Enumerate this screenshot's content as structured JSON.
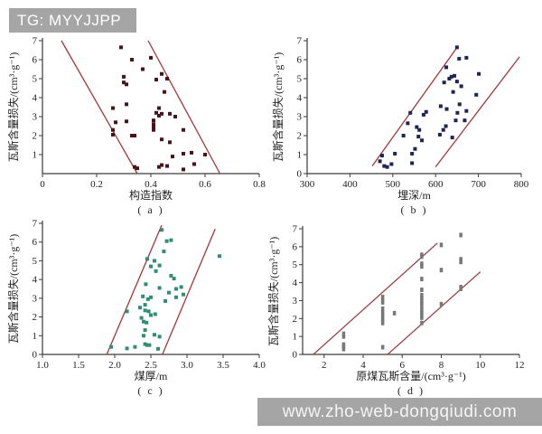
{
  "overlays": {
    "tag_badge": "TG: MYYJJPP",
    "url_watermark": "www.zho-web-dongqiudi.com",
    "overlay_bg": "#a5a5a5",
    "overlay_text_color": "#ffffff"
  },
  "chart_data": [
    {
      "id": "a",
      "type": "scatter",
      "caption": "( a )",
      "xlabel": "构造指数",
      "ylabel": "瓦斯含量损失/(cm³·g⁻¹)",
      "xlim": [
        0,
        0.8
      ],
      "ylim": [
        0,
        7
      ],
      "xtick_values": [
        0,
        0.2,
        0.4,
        0.6,
        0.8
      ],
      "xtick_labels": [
        "0",
        "0.2",
        "0.4",
        "0.6",
        "0.8"
      ],
      "ytick_values": [
        1,
        2,
        3,
        4,
        5,
        6,
        7
      ],
      "ytick_labels": [
        "1",
        "2",
        "3",
        "4",
        "5",
        "6",
        "7"
      ],
      "grid": false,
      "legend": null,
      "marker_color": "#4a151a",
      "line_color": "#a23638",
      "axis_color": "#3a3a3a",
      "envelope_lines": [
        [
          0.07,
          7,
          0.35,
          0
        ],
        [
          0.39,
          7,
          0.655,
          0
        ]
      ],
      "points": [
        [
          0.29,
          6.65
        ],
        [
          0.33,
          6.0
        ],
        [
          0.4,
          6.1
        ],
        [
          0.37,
          5.5
        ],
        [
          0.3,
          5.1
        ],
        [
          0.44,
          5.25
        ],
        [
          0.46,
          5.0
        ],
        [
          0.42,
          4.95
        ],
        [
          0.3,
          4.8
        ],
        [
          0.31,
          4.7
        ],
        [
          0.45,
          4.3
        ],
        [
          0.31,
          3.65
        ],
        [
          0.26,
          3.45
        ],
        [
          0.43,
          3.45
        ],
        [
          0.42,
          3.2
        ],
        [
          0.44,
          3.15
        ],
        [
          0.47,
          3.15
        ],
        [
          0.43,
          3.05
        ],
        [
          0.49,
          3.0
        ],
        [
          0.27,
          2.7
        ],
        [
          0.31,
          2.75
        ],
        [
          0.41,
          2.8
        ],
        [
          0.41,
          2.6
        ],
        [
          0.41,
          2.45
        ],
        [
          0.41,
          2.3
        ],
        [
          0.26,
          2.3
        ],
        [
          0.26,
          2.05
        ],
        [
          0.52,
          2.3
        ],
        [
          0.33,
          2.0
        ],
        [
          0.34,
          2.0
        ],
        [
          0.44,
          1.8
        ],
        [
          0.47,
          1.65
        ],
        [
          0.55,
          1.1
        ],
        [
          0.52,
          1.05
        ],
        [
          0.48,
          0.9
        ],
        [
          0.6,
          1.0
        ],
        [
          0.34,
          0.35
        ],
        [
          0.35,
          0.28
        ],
        [
          0.43,
          0.35
        ],
        [
          0.44,
          0.45
        ],
        [
          0.46,
          0.4
        ],
        [
          0.52,
          0.22
        ],
        [
          0.56,
          0.5
        ]
      ]
    },
    {
      "id": "b",
      "type": "scatter",
      "caption": "( b )",
      "xlabel": "埋深/m",
      "ylabel": "瓦斯含量损失/(cm³·g⁻¹)",
      "xlim": [
        300,
        800
      ],
      "ylim": [
        0,
        7
      ],
      "xtick_values": [
        300,
        400,
        500,
        600,
        700,
        800
      ],
      "xtick_labels": [
        "300",
        "400",
        "500",
        "600",
        "700",
        "800"
      ],
      "ytick_values": [
        0,
        1,
        2,
        3,
        4,
        5,
        6,
        7
      ],
      "ytick_labels": [
        "0",
        "1",
        "2",
        "3",
        "4",
        "5",
        "6",
        "7"
      ],
      "grid": false,
      "legend": null,
      "marker_color": "#1e2553",
      "line_color": "#a23638",
      "axis_color": "#3a3a3a",
      "envelope_lines": [
        [
          452,
          0.4,
          652,
          6.7
        ],
        [
          600,
          0.35,
          796,
          6.15
        ]
      ],
      "points": [
        [
          650,
          6.65
        ],
        [
          655,
          6.05
        ],
        [
          672,
          6.1
        ],
        [
          625,
          5.6
        ],
        [
          701,
          5.25
        ],
        [
          637,
          5.1
        ],
        [
          644,
          5.15
        ],
        [
          632,
          5.0
        ],
        [
          620,
          4.8
        ],
        [
          650,
          4.85
        ],
        [
          660,
          4.6
        ],
        [
          641,
          4.3
        ],
        [
          695,
          4.15
        ],
        [
          612,
          3.55
        ],
        [
          656,
          3.65
        ],
        [
          626,
          3.4
        ],
        [
          672,
          3.3
        ],
        [
          651,
          3.2
        ],
        [
          668,
          2.8
        ],
        [
          647,
          2.8
        ],
        [
          624,
          2.5
        ],
        [
          618,
          2.3
        ],
        [
          639,
          1.9
        ],
        [
          541,
          3.2
        ],
        [
          572,
          3.1
        ],
        [
          578,
          3.25
        ],
        [
          535,
          2.65
        ],
        [
          556,
          2.45
        ],
        [
          562,
          2.3
        ],
        [
          610,
          2.05
        ],
        [
          525,
          2.0
        ],
        [
          560,
          1.95
        ],
        [
          568,
          1.75
        ],
        [
          505,
          1.05
        ],
        [
          545,
          1.05
        ],
        [
          552,
          1.3
        ],
        [
          475,
          0.95
        ],
        [
          470,
          0.65
        ],
        [
          480,
          0.4
        ],
        [
          487,
          0.35
        ],
        [
          497,
          0.5
        ],
        [
          545,
          0.55
        ]
      ]
    },
    {
      "id": "c",
      "type": "scatter",
      "caption": "( c )",
      "xlabel": "煤厚/m",
      "ylabel": "瓦斯含量损失/(cm³·g⁻¹)",
      "xlim": [
        1.0,
        4.0
      ],
      "ylim": [
        0,
        7
      ],
      "xtick_values": [
        1.0,
        1.5,
        2.0,
        2.5,
        3.0,
        3.5,
        4.0
      ],
      "xtick_labels": [
        "1.0",
        "1.5",
        "2.0",
        "2.5",
        "3.0",
        "3.5",
        "4.0"
      ],
      "ytick_values": [
        0,
        1,
        2,
        3,
        4,
        5,
        6,
        7
      ],
      "ytick_labels": [
        "0",
        "1",
        "2",
        "3",
        "4",
        "5",
        "6",
        "7"
      ],
      "grid": false,
      "legend": null,
      "marker_color": "#2f8e75",
      "line_color": "#a23638",
      "axis_color": "#3a3a3a",
      "envelope_lines": [
        [
          1.89,
          0,
          2.65,
          6.9
        ],
        [
          2.66,
          0,
          3.39,
          6.7
        ]
      ],
      "points": [
        [
          2.65,
          6.65
        ],
        [
          2.72,
          6.05
        ],
        [
          2.78,
          6.1
        ],
        [
          2.68,
          5.5
        ],
        [
          3.45,
          5.25
        ],
        [
          2.45,
          5.1
        ],
        [
          2.55,
          5.0
        ],
        [
          2.5,
          4.7
        ],
        [
          2.62,
          4.75
        ],
        [
          2.57,
          4.45
        ],
        [
          2.78,
          4.2
        ],
        [
          2.82,
          4.05
        ],
        [
          2.43,
          3.75
        ],
        [
          2.62,
          3.55
        ],
        [
          2.85,
          3.5
        ],
        [
          2.92,
          3.6
        ],
        [
          2.95,
          3.2
        ],
        [
          2.75,
          3.3
        ],
        [
          2.39,
          3.1
        ],
        [
          2.46,
          2.95
        ],
        [
          2.5,
          3.05
        ],
        [
          2.85,
          3.05
        ],
        [
          2.7,
          2.85
        ],
        [
          2.42,
          2.65
        ],
        [
          2.35,
          2.5
        ],
        [
          2.42,
          2.35
        ],
        [
          2.47,
          2.3
        ],
        [
          2.17,
          2.3
        ],
        [
          2.5,
          2.1
        ],
        [
          2.56,
          2.15
        ],
        [
          2.37,
          1.95
        ],
        [
          2.4,
          1.75
        ],
        [
          2.44,
          1.7
        ],
        [
          2.42,
          1.3
        ],
        [
          2.4,
          1.0
        ],
        [
          2.55,
          1.05
        ],
        [
          2.62,
          0.95
        ],
        [
          2.42,
          0.55
        ],
        [
          2.45,
          0.5
        ],
        [
          2.48,
          0.5
        ],
        [
          1.95,
          0.4
        ],
        [
          2.17,
          0.32
        ],
        [
          2.28,
          0.4
        ],
        [
          2.6,
          0.3
        ]
      ]
    },
    {
      "id": "d",
      "type": "scatter",
      "caption": "( d )",
      "xlabel": "原煤瓦斯含量/(cm³·g⁻¹)",
      "ylabel": "瓦斯含量损失/(cm³·g⁻¹)",
      "xlim": [
        0.9,
        12
      ],
      "ylim": [
        0,
        7
      ],
      "xtick_values": [
        2,
        4,
        6,
        8,
        10,
        12
      ],
      "xtick_labels": [
        "2",
        "4",
        "6",
        "8",
        "10",
        "12"
      ],
      "ytick_values": [
        0,
        1,
        2,
        3,
        4,
        5,
        6,
        7
      ],
      "ytick_labels": [
        "0",
        "1",
        "2",
        "3",
        "4",
        "5",
        "6",
        "7"
      ],
      "grid": false,
      "legend": null,
      "marker_color": "#787878",
      "line_color": "#9c4345",
      "axis_color": "#3a3a3a",
      "envelope_lines": [
        [
          1.45,
          0,
          7.8,
          6.2
        ],
        [
          5.25,
          0,
          10.0,
          4.6
        ]
      ],
      "points": [
        [
          3,
          1.15
        ],
        [
          3,
          1.0
        ],
        [
          3,
          0.55
        ],
        [
          3,
          0.45
        ],
        [
          3,
          0.3
        ],
        [
          5,
          3.2
        ],
        [
          5,
          3.05
        ],
        [
          5,
          2.9
        ],
        [
          5,
          2.55
        ],
        [
          5,
          2.35
        ],
        [
          5,
          2.2
        ],
        [
          5,
          2.05
        ],
        [
          5,
          1.9
        ],
        [
          5,
          1.75
        ],
        [
          5,
          0.4
        ],
        [
          5.6,
          2.3
        ],
        [
          7,
          5.55
        ],
        [
          7,
          5.45
        ],
        [
          7,
          5.05
        ],
        [
          7,
          4.9
        ],
        [
          7,
          4.2
        ],
        [
          7,
          3.6
        ],
        [
          7,
          3.3
        ],
        [
          7,
          3.15
        ],
        [
          7,
          3.0
        ],
        [
          7,
          2.85
        ],
        [
          7,
          2.7
        ],
        [
          7,
          2.5
        ],
        [
          7,
          2.35
        ],
        [
          7,
          2.2
        ],
        [
          7,
          2.05
        ],
        [
          7,
          1.75
        ],
        [
          8,
          6.1
        ],
        [
          8,
          4.7
        ],
        [
          8,
          2.8
        ],
        [
          9,
          6.65
        ],
        [
          9,
          5.3
        ],
        [
          9,
          5.15
        ],
        [
          9,
          3.75
        ],
        [
          9,
          3.65
        ]
      ]
    }
  ]
}
